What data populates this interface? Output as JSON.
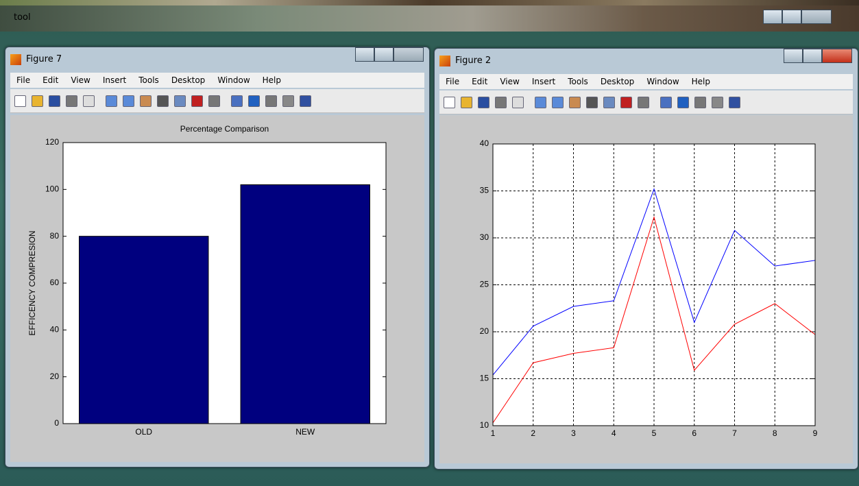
{
  "background_window": {
    "title": "tool"
  },
  "windows": [
    {
      "title": "Figure 7",
      "menu": [
        "File",
        "Edit",
        "View",
        "Insert",
        "Tools",
        "Desktop",
        "Window",
        "Help"
      ]
    },
    {
      "title": "Figure 2",
      "menu": [
        "File",
        "Edit",
        "View",
        "Insert",
        "Tools",
        "Desktop",
        "Window",
        "Help"
      ]
    }
  ],
  "chart_data": [
    {
      "type": "bar",
      "title": "Percentage Comparison",
      "y_label": "EFFICENCY COMPRESION",
      "categories": [
        "OLD",
        "NEW"
      ],
      "values": [
        80,
        102
      ],
      "color": "#00007f",
      "ylim": [
        0,
        120
      ],
      "yticks": [
        0,
        20,
        40,
        60,
        80,
        100,
        120
      ],
      "grid": false
    },
    {
      "type": "line",
      "x": [
        1,
        2,
        3,
        4,
        5,
        6,
        7,
        8,
        9
      ],
      "series": [
        {
          "color": "#0000ff",
          "values": [
            15.4,
            20.6,
            22.7,
            23.3,
            35.2,
            21,
            30.8,
            27,
            27.6
          ]
        },
        {
          "color": "#ff0000",
          "values": [
            10.3,
            16.7,
            17.7,
            18.3,
            32.2,
            15.9,
            20.8,
            23,
            19.7
          ]
        }
      ],
      "xlim": [
        1,
        9
      ],
      "xticks": [
        1,
        2,
        3,
        4,
        5,
        6,
        7,
        8,
        9
      ],
      "ylim": [
        10,
        40
      ],
      "yticks": [
        10,
        15,
        20,
        25,
        30,
        35,
        40
      ],
      "grid": true
    }
  ]
}
